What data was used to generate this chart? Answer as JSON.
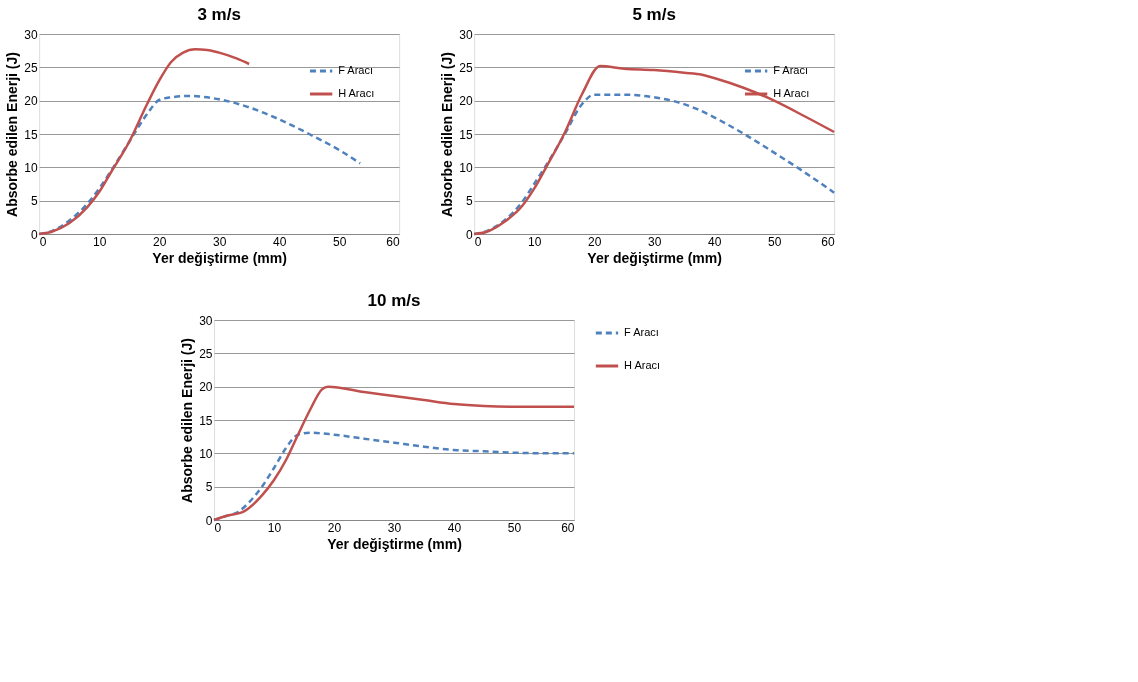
{
  "chart_data": [
    {
      "type": "line",
      "title": "3 m/s",
      "xlabel": "Yer değiştirme (mm)",
      "ylabel": "Absorbe edilen Enerji (J)",
      "xlim": [
        0,
        60
      ],
      "xticks": [
        0,
        10,
        20,
        30,
        40,
        50,
        60
      ],
      "ylim": [
        0,
        30
      ],
      "yticks": [
        0,
        5,
        10,
        15,
        20,
        25,
        30
      ],
      "grid": "y",
      "legend": "top right",
      "series": [
        {
          "name": "F Aracı",
          "color": "#4f81bd",
          "line_style": "dashed",
          "x": [
            0,
            2,
            5,
            8,
            10,
            12,
            15,
            18,
            20,
            22,
            25,
            28,
            30,
            35,
            40,
            45,
            50,
            53.5
          ],
          "values": [
            0,
            0.4,
            2,
            4.5,
            6.8,
            9.5,
            13.8,
            18,
            20.1,
            20.5,
            20.7,
            20.5,
            20.2,
            19,
            17.2,
            15,
            12.6,
            10.6
          ]
        },
        {
          "name": "H Aracı",
          "color": "#c0504d",
          "line_style": "solid",
          "x": [
            0,
            2,
            5,
            8,
            10,
            12,
            15,
            18,
            20,
            22,
            24,
            26,
            28,
            30,
            33,
            35
          ],
          "values": [
            0,
            0.3,
            1.6,
            4,
            6.3,
            9.3,
            13.8,
            19.5,
            23,
            25.8,
            27.2,
            27.7,
            27.6,
            27.2,
            26.3,
            25.5
          ]
        }
      ]
    },
    {
      "type": "line",
      "title": "5 m/s",
      "xlabel": "Yer değiştirme (mm)",
      "ylabel": "Absorbe edilen Enerji (J)",
      "xlim": [
        0,
        60
      ],
      "xticks": [
        0,
        10,
        20,
        30,
        40,
        50,
        60
      ],
      "ylim": [
        0,
        30
      ],
      "yticks": [
        0,
        5,
        10,
        15,
        20,
        25,
        30
      ],
      "grid": "y",
      "legend": "top right",
      "series": [
        {
          "name": "F Aracı",
          "color": "#4f81bd",
          "line_style": "dashed",
          "x": [
            0,
            2,
            5,
            8,
            10,
            12,
            15,
            18,
            20,
            25,
            30,
            33,
            37,
            40,
            45,
            50,
            55,
            60
          ],
          "values": [
            0,
            0.4,
            2,
            4.8,
            7.5,
            10.3,
            14.8,
            19.5,
            20.9,
            20.9,
            20.5,
            20,
            18.8,
            17.5,
            15,
            12.2,
            9.3,
            6.2
          ]
        },
        {
          "name": "H Aracı",
          "color": "#c0504d",
          "line_style": "solid",
          "x": [
            0,
            2,
            5,
            8,
            10,
            12,
            15,
            18,
            21,
            25,
            30,
            35,
            38,
            40,
            45,
            50,
            55,
            60
          ],
          "values": [
            0,
            0.3,
            1.8,
            4.2,
            6.8,
            10,
            15,
            21,
            25.2,
            24.8,
            24.6,
            24.2,
            23.9,
            23.4,
            21.9,
            20,
            17.7,
            15.3
          ]
        }
      ]
    },
    {
      "type": "line",
      "title": "10 m/s",
      "xlabel": "Yer değiştirme (mm)",
      "ylabel": "Absorbe edilen Enerji (J)",
      "xlim": [
        0,
        60
      ],
      "xticks": [
        0,
        10,
        20,
        30,
        40,
        50,
        60
      ],
      "ylim": [
        0,
        30
      ],
      "yticks": [
        0,
        5,
        10,
        15,
        20,
        25,
        30
      ],
      "grid": "y",
      "legend": "right",
      "series": [
        {
          "name": "F Aracı",
          "color": "#4f81bd",
          "line_style": "dashed",
          "x": [
            0,
            2,
            4,
            6,
            8,
            10,
            12,
            14,
            16,
            20,
            25,
            30,
            35,
            40,
            45,
            50,
            55,
            60
          ],
          "values": [
            0,
            0.6,
            1.2,
            2.8,
            5,
            7.8,
            10.8,
            12.8,
            13.1,
            12.8,
            12.2,
            11.6,
            11,
            10.5,
            10.3,
            10.1,
            10,
            10
          ]
        },
        {
          "name": "H Aracı",
          "color": "#c0504d",
          "line_style": "solid",
          "x": [
            0,
            2,
            5,
            8,
            10,
            12,
            14,
            16,
            18,
            19,
            25,
            30,
            35,
            40,
            45,
            50,
            60
          ],
          "values": [
            0,
            0.6,
            1.3,
            3.7,
            6,
            9,
            12.8,
            16.5,
            19.6,
            20,
            19.2,
            18.6,
            18,
            17.4,
            17.1,
            17,
            17
          ]
        }
      ]
    }
  ]
}
